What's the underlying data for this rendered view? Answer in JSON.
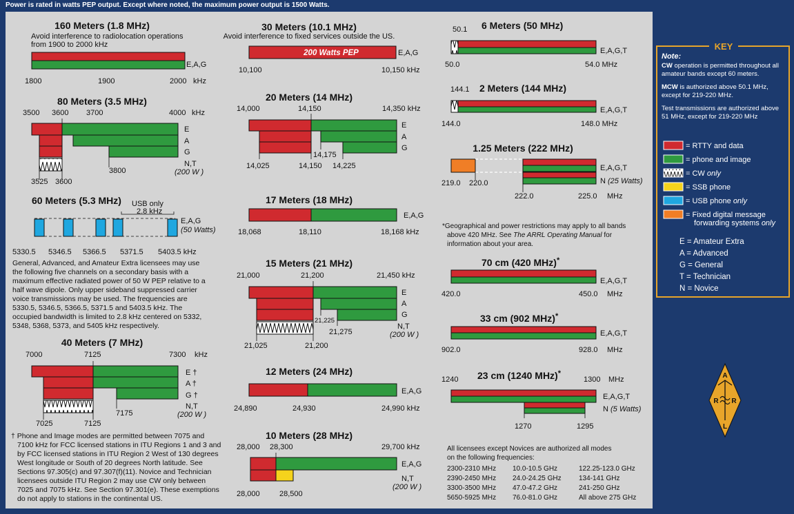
{
  "top_note": "Power is rated in watts PEP output. Except where noted, the maximum power output is 1500 Watts.",
  "bands": {
    "b160": {
      "title": "160 Meters (1.8 MHz)",
      "note": [
        "Avoid interference to radiolocation operations",
        "from 1900 to 2000 kHz"
      ],
      "ticks": [
        "1800",
        "1900",
        "2000",
        "kHz"
      ],
      "licenses": "E,A,G"
    },
    "b80": {
      "title": "80 Meters (3.5 MHz)",
      "top": [
        "3500",
        "3600",
        "3700",
        "4000",
        "kHz"
      ],
      "rows": [
        "E",
        "A",
        "G"
      ],
      "bottom": [
        "3525",
        "3600",
        "3800"
      ],
      "nt": "N,T",
      "power": "(200 W )"
    },
    "b60": {
      "title": "60 Meters (5.3 MHz)",
      "usb": "USB only",
      "bw": "2.8 kHz",
      "licenses": "E,A,G",
      "power": "(50 Watts)",
      "ticks": [
        "5330.5",
        "5346.5",
        "5366.5",
        "5371.5",
        "5403.5 kHz"
      ],
      "text": [
        "General, Advanced, and Amateur Extra licensees may use",
        "the following five channels on a secondary basis with a",
        "maximum effective radiated power of 50 W PEP relative to a",
        "half wave dipole. Only upper sideband suppressed carrier",
        "voice transmissions may be used. The frequencies are",
        "5330.5, 5346.5, 5366.5, 5371.5 and 5403.5 kHz. The",
        "occupied bandwidth is limited to 2.8 kHz centered on 5332,",
        "5348, 5368, 5373, and 5405 kHz respectively."
      ]
    },
    "b40": {
      "title": "40 Meters (7 MHz)",
      "top": [
        "7000",
        "7125",
        "7300",
        "kHz"
      ],
      "rows": [
        "E †",
        "A †",
        "G †"
      ],
      "bottom": [
        "7025",
        "7125",
        "7175"
      ],
      "nt": "N,T",
      "power": "(200 W )",
      "footnote": [
        "† Phone and Image modes are permitted between 7075 and",
        "7100 kHz for FCC licensed stations in ITU Regions 1 and 3 and",
        "by FCC licensed stations in ITU Region 2 West of 130 degrees",
        "West longitude or South of 20 degrees North latitude. See",
        "Sections 97.305(c) and 97.307(f)(11). Novice and Technician",
        "licensees outside ITU Region 2 may use CW only between",
        "7025 and 7075 kHz. See Section 97.301(e). These exemptions",
        "do not apply to stations in the continental US."
      ]
    },
    "b30": {
      "title": "30 Meters (10.1 MHz)",
      "note": "Avoid interference to fixed services outside the US.",
      "power": "200 Watts PEP",
      "licenses": "E,A,G",
      "ticks": [
        "10,100",
        "10,150 kHz"
      ]
    },
    "b20": {
      "title": "20 Meters (14 MHz)",
      "top": [
        "14,000",
        "14,150",
        "14,350 kHz"
      ],
      "rows": [
        "E",
        "A",
        "G"
      ],
      "bottom": [
        "14,025",
        "14,150",
        "14,225"
      ],
      "mid": "14,175"
    },
    "b17": {
      "title": "17 Meters (18 MHz)",
      "licenses": "E,A,G",
      "ticks": [
        "18,068",
        "18,110",
        "18,168 kHz"
      ]
    },
    "b15": {
      "title": "15 Meters (21 MHz)",
      "top": [
        "21,000",
        "21,200",
        "21,450 kHz"
      ],
      "rows": [
        "E",
        "A",
        "G"
      ],
      "mid": "21,225",
      "mid2": "21,275",
      "nt": "N,T",
      "power": "(200 W )",
      "bottom": [
        "21,025",
        "21,200"
      ]
    },
    "b12": {
      "title": "12 Meters (24 MHz)",
      "licenses": "E,A,G",
      "ticks": [
        "24,890",
        "24,930",
        "24,990 kHz"
      ]
    },
    "b10": {
      "title": "10 Meters (28 MHz)",
      "top": [
        "28,000",
        "28,300",
        "29,700 kHz"
      ],
      "licenses": "E,A,G",
      "nt": "N,T",
      "power": "(200 W )",
      "bottom": [
        "28,000",
        "28,500"
      ]
    },
    "b6": {
      "title": "6 Meters (50 MHz)",
      "top": "50.1",
      "licenses": "E,A,G,T",
      "ticks": [
        "50.0",
        "54.0 MHz"
      ]
    },
    "b2": {
      "title": "2 Meters (144 MHz)",
      "top": "144.1",
      "licenses": "E,A,G,T",
      "ticks": [
        "144.0",
        "148.0 MHz"
      ]
    },
    "b125": {
      "title": "1.25 Meters (222 MHz)",
      "licenses": "E,A,G,T",
      "nl": "N",
      "npower": "(25 Watts)",
      "ticks": [
        "219.0",
        "220.0",
        "222.0",
        "225.0",
        "MHz"
      ]
    },
    "footnote_geo": [
      "*Geographical and power restrictions may apply to all bands",
      "above 420 MHz. See ",
      "The ARRL Operating Manual",
      " for",
      "information about your area."
    ],
    "b70": {
      "title": "70 cm (420 MHz)",
      "star": "*",
      "licenses": "E,A,G,T",
      "ticks": [
        "420.0",
        "450.0",
        "MHz"
      ]
    },
    "b33": {
      "title": "33 cm (902 MHz)",
      "star": "*",
      "licenses": "E,A,G,T",
      "ticks": [
        "902.0",
        "928.0",
        "MHz"
      ]
    },
    "b23": {
      "title": "23 cm (1240 MHz)",
      "star": "*",
      "licenses": "E,A,G,T",
      "nl": "N",
      "npower": "(5 Watts)",
      "ticks": [
        "1240",
        "1300",
        "MHz",
        "1270",
        "1295"
      ]
    },
    "all_modes": {
      "intro": [
        "All licensees except Novices are authorized all modes",
        "on the following frequencies:"
      ],
      "cols": [
        [
          "2300-2310 MHz",
          "2390-2450 MHz",
          "3300-3500 MHz",
          "5650-5925 MHz"
        ],
        [
          "10.0-10.5 GHz",
          "24.0-24.25 GHz",
          "47.0-47.2 GHz",
          "76.0-81.0 GHz"
        ],
        [
          "122.25-123.0 GHz",
          "134-141 GHz",
          "241-250 GHz",
          "All above 275 GHz"
        ]
      ]
    }
  },
  "key": {
    "title": "KEY",
    "note_label": "Note:",
    "notes": [
      [
        "CW",
        " operation is permitted throughout all",
        "amateur bands except 60 meters."
      ],
      [
        "MCW",
        " is authorized above 50.1 MHz,",
        "except for 219-220 MHz."
      ],
      [
        "",
        "Test transmissions are authorized above",
        "51 MHz, except for 219-220 MHz"
      ]
    ],
    "legend": [
      "= RTTY and data",
      "= phone and image",
      "= CW ",
      "only",
      "= SSB phone",
      "= USB phone ",
      "only",
      "= Fixed digital message",
      "forwarding systems ",
      "only"
    ],
    "classes": [
      "E = Amateur Extra",
      "A = Advanced",
      "G = General",
      "T = Technician",
      "N = Novice"
    ],
    "colors": {
      "red": "#d02a2f",
      "green": "#2f9a3f",
      "yellow": "#f5d31c",
      "blue": "#1fa7e0",
      "orange": "#f07e26",
      "gold": "#e8a52a"
    }
  },
  "logo": {
    "letters": [
      "A",
      "R",
      "R",
      "L"
    ]
  }
}
